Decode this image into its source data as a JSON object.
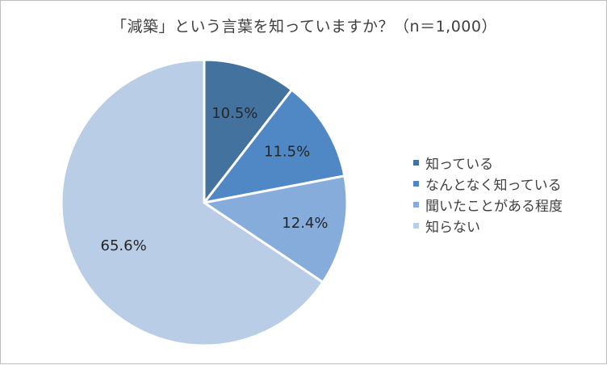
{
  "chart_data": {
    "type": "pie",
    "title": "「減築」という言葉を知っていますか？（n＝1,000）",
    "categories": [
      "知っている",
      "なんとなく知っている",
      "聞いたことがある程度",
      "知らない"
    ],
    "values": [
      10.5,
      11.5,
      12.4,
      65.6
    ],
    "data_labels": [
      "10.5%",
      "11.5%",
      "12.4%",
      "65.6%"
    ],
    "colors": [
      "#44729f",
      "#5088c6",
      "#86acdb",
      "#b9cde6"
    ],
    "legend_position": "right",
    "start_angle": "12 o'clock",
    "direction": "clockwise"
  }
}
